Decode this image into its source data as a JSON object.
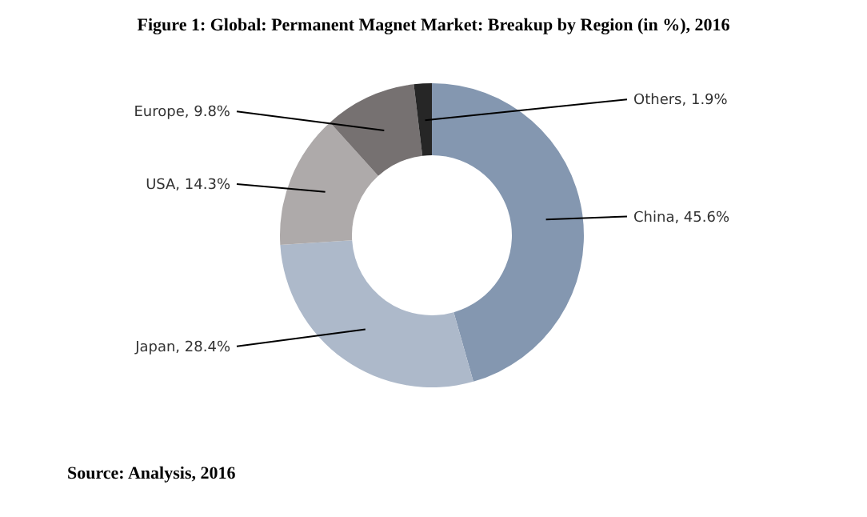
{
  "chart_data": {
    "type": "donut",
    "title": "Figure 1: Global: Permanent Magnet Market: Breakup by Region (in %), 2016",
    "categories": [
      "China",
      "Japan",
      "USA",
      "Europe",
      "Others"
    ],
    "values": [
      45.6,
      28.4,
      14.3,
      9.8,
      1.9
    ],
    "value_labels": [
      "45.6%",
      "28.4%",
      "14.3%",
      "9.8%",
      "1.9%"
    ],
    "colors": [
      "#8497b0",
      "#adb9ca",
      "#aeaaaa",
      "#767171",
      "#262626"
    ],
    "annotations": [
      "Source: Analysis, 2016"
    ]
  }
}
